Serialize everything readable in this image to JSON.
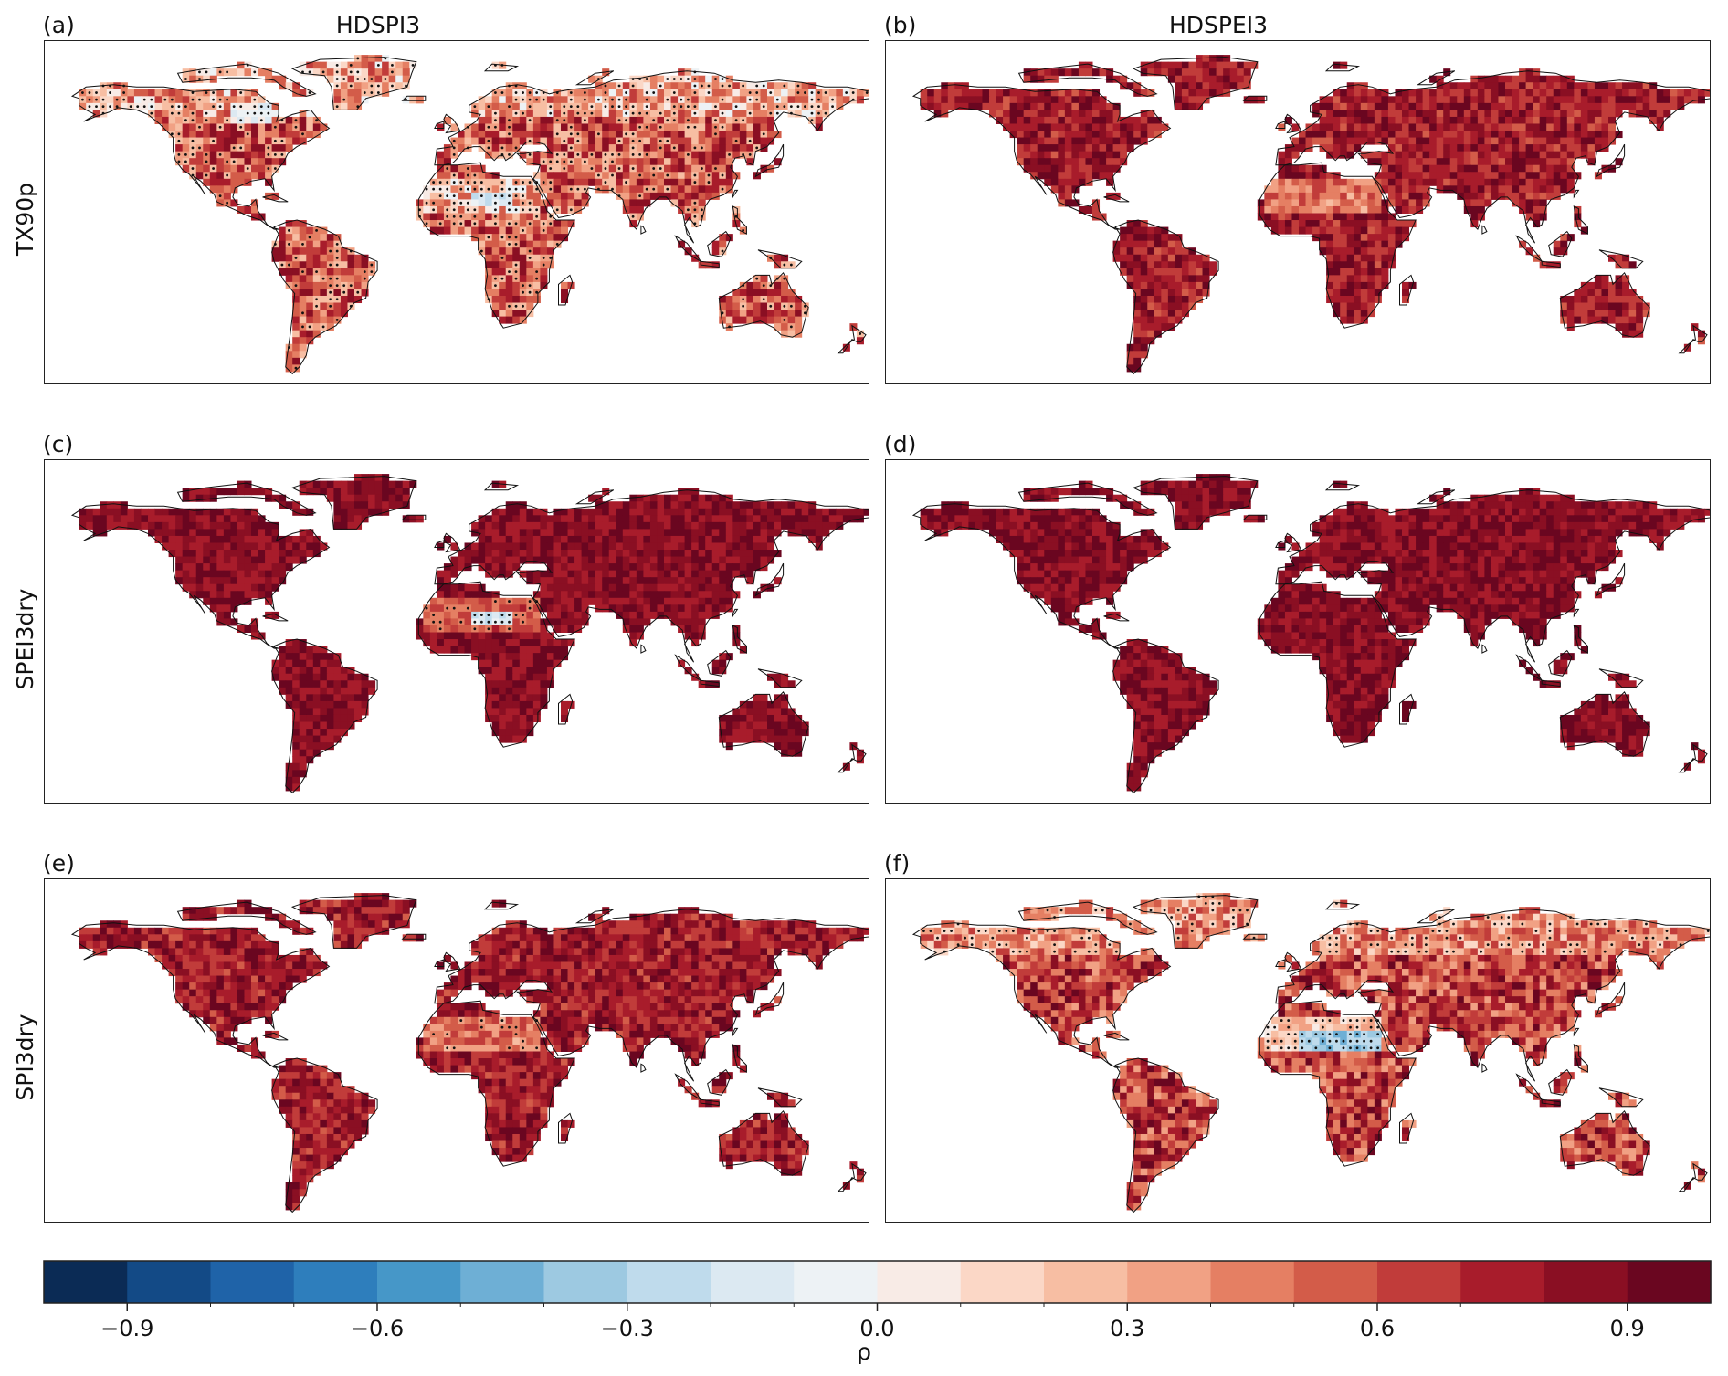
{
  "columns": [
    {
      "title": "HDSPI3"
    },
    {
      "title": "HDSPEI3"
    }
  ],
  "rows": [
    {
      "label": "TX90p"
    },
    {
      "label": "SPEI3dry"
    },
    {
      "label": "SPI3dry"
    }
  ],
  "panels": [
    {
      "label": "(a)",
      "row": 0,
      "col": 0,
      "regime": "moderate",
      "stipple": "heavy",
      "blue_patches": [
        "sahara-small",
        "canada"
      ]
    },
    {
      "label": "(b)",
      "row": 0,
      "col": 1,
      "regime": "high",
      "stipple": "light",
      "blue_patches": []
    },
    {
      "label": "(c)",
      "row": 1,
      "col": 0,
      "regime": "very-high",
      "stipple": "sahara",
      "blue_patches": [
        "sahara-small"
      ]
    },
    {
      "label": "(d)",
      "row": 1,
      "col": 1,
      "regime": "very-high",
      "stipple": "none",
      "blue_patches": []
    },
    {
      "label": "(e)",
      "row": 2,
      "col": 0,
      "regime": "high",
      "stipple": "sahara-few",
      "blue_patches": []
    },
    {
      "label": "(f)",
      "row": 2,
      "col": 1,
      "regime": "moderate-high",
      "stipple": "sahara-heavy",
      "blue_patches": [
        "sahara-band"
      ]
    }
  ],
  "colorbar": {
    "label": "ρ",
    "vmin": -1.0,
    "vmax": 1.0,
    "ticks": [
      {
        "value": -0.9,
        "text": "−0.9"
      },
      {
        "value": -0.6,
        "text": "−0.6"
      },
      {
        "value": -0.3,
        "text": "−0.3"
      },
      {
        "value": 0.0,
        "text": "0.0"
      },
      {
        "value": 0.3,
        "text": "0.3"
      },
      {
        "value": 0.6,
        "text": "0.6"
      },
      {
        "value": 0.9,
        "text": "0.9"
      }
    ],
    "bins": 20,
    "colors": [
      "#0b2b55",
      "#134a86",
      "#1f63a8",
      "#2e7ebc",
      "#4697c8",
      "#6eafd5",
      "#9dc9e1",
      "#bfdbec",
      "#dce9f2",
      "#edf2f5",
      "#f8ebe6",
      "#fbd7c6",
      "#f7bea3",
      "#f1a184",
      "#e57f63",
      "#d35c49",
      "#c13c3a",
      "#a81c2b",
      "#8a0f23",
      "#6a0620"
    ]
  }
}
